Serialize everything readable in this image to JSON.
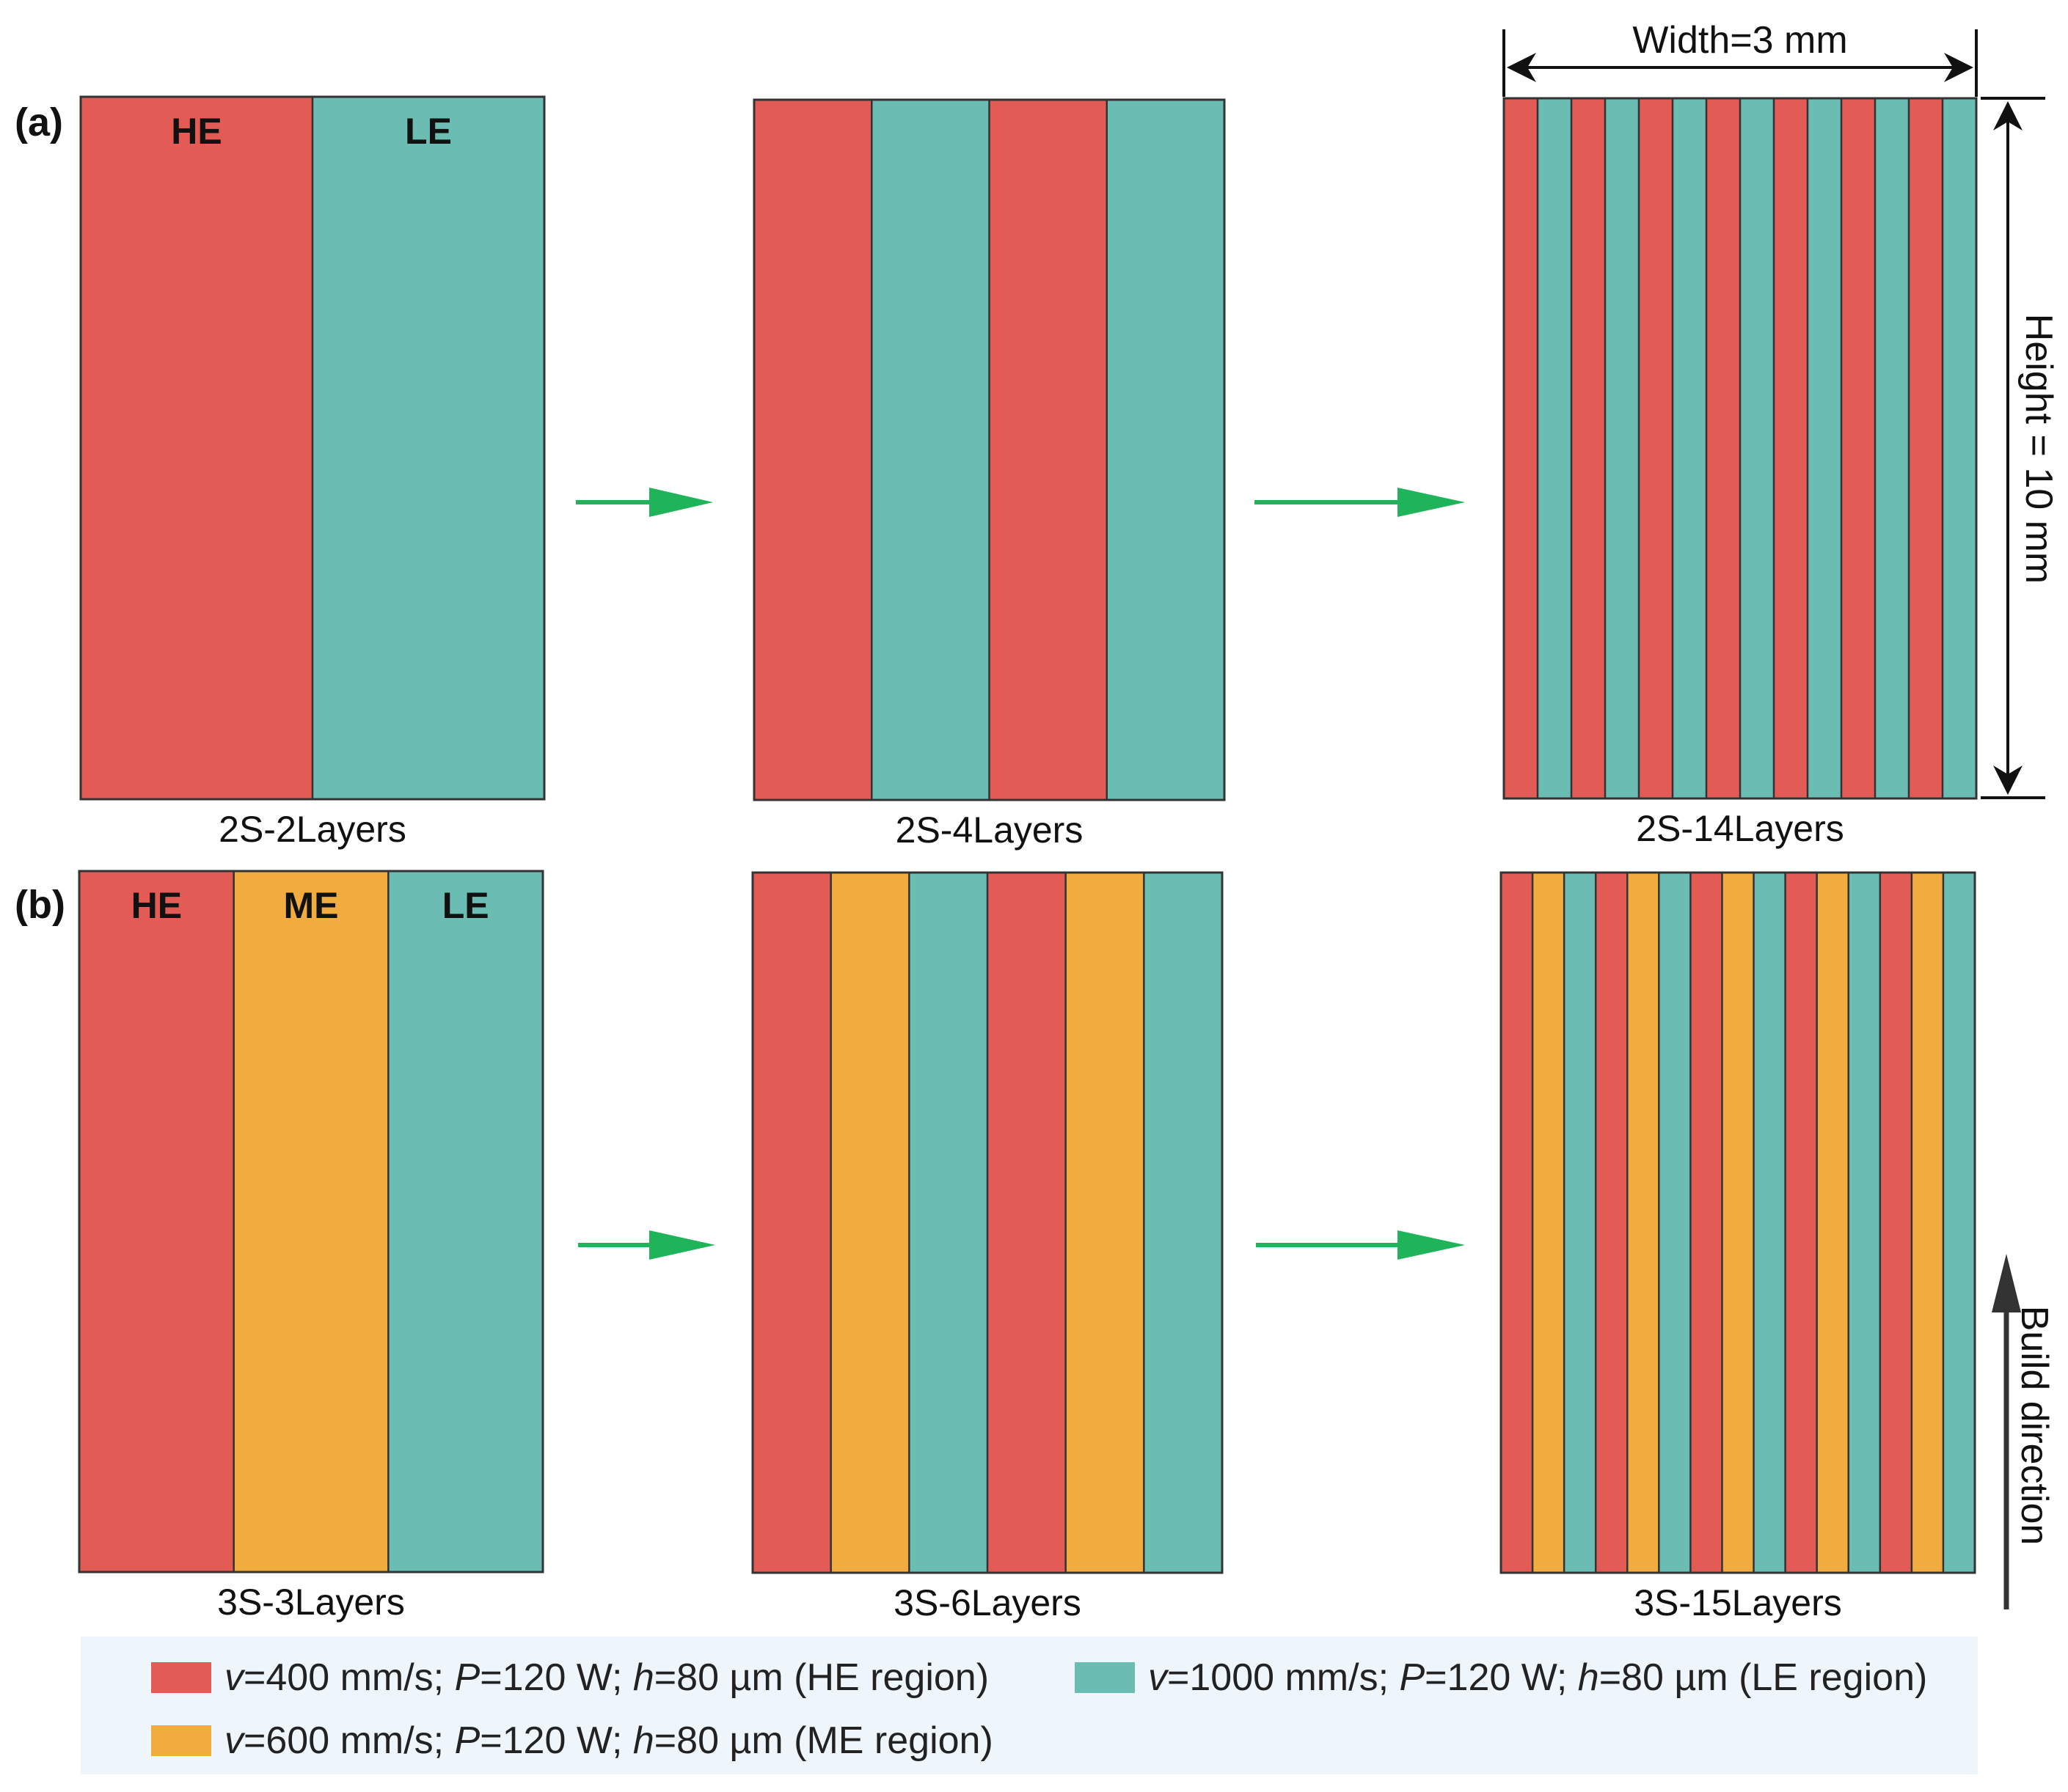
{
  "colors": {
    "he": "#e35b55",
    "me": "#f0ac3e",
    "le": "#6bbdb4",
    "arrow": "#1fb45a",
    "border": "#333333"
  },
  "panels": {
    "a": {
      "label": "(a)",
      "blocks": [
        {
          "caption": "2S-2Layers",
          "stripes": [
            "he",
            "le"
          ],
          "region_labels": [
            "HE",
            "LE"
          ]
        },
        {
          "caption": "2S-4Layers",
          "stripes": [
            "he",
            "le",
            "he",
            "le"
          ],
          "region_labels": []
        },
        {
          "caption": "2S-14Layers",
          "stripes": [
            "he",
            "le",
            "he",
            "le",
            "he",
            "le",
            "he",
            "le",
            "he",
            "le",
            "he",
            "le",
            "he",
            "le"
          ],
          "region_labels": []
        }
      ]
    },
    "b": {
      "label": "(b)",
      "blocks": [
        {
          "caption": "3S-3Layers",
          "stripes": [
            "he",
            "me",
            "le"
          ],
          "region_labels": [
            "HE",
            "ME",
            "LE"
          ]
        },
        {
          "caption": "3S-6Layers",
          "stripes": [
            "he",
            "me",
            "le",
            "he",
            "me",
            "le"
          ],
          "region_labels": []
        },
        {
          "caption": "3S-15Layers",
          "stripes": [
            "he",
            "me",
            "le",
            "he",
            "me",
            "le",
            "he",
            "me",
            "le",
            "he",
            "me",
            "le",
            "he",
            "me",
            "le"
          ],
          "region_labels": []
        }
      ]
    }
  },
  "dimensions": {
    "width_label": "Width=3 mm",
    "height_label": "Height = 10 mm"
  },
  "build_direction_label": "Build direction",
  "legend": {
    "he": {
      "v": "v",
      "v_val": "=400 mm/s; ",
      "p": "P",
      "p_val": "=120 W; ",
      "h": "h",
      "h_val": "=80 µm (HE region)"
    },
    "le": {
      "v": "v",
      "v_val": "=1000 mm/s; ",
      "p": "P",
      "p_val": "=120 W; ",
      "h": "h",
      "h_val": "=80 µm (LE region)"
    },
    "me": {
      "v": "v",
      "v_val": "=600 mm/s; ",
      "p": "P",
      "p_val": "=120 W; ",
      "h": "h",
      "h_val": "=80 µm (ME region)"
    }
  }
}
